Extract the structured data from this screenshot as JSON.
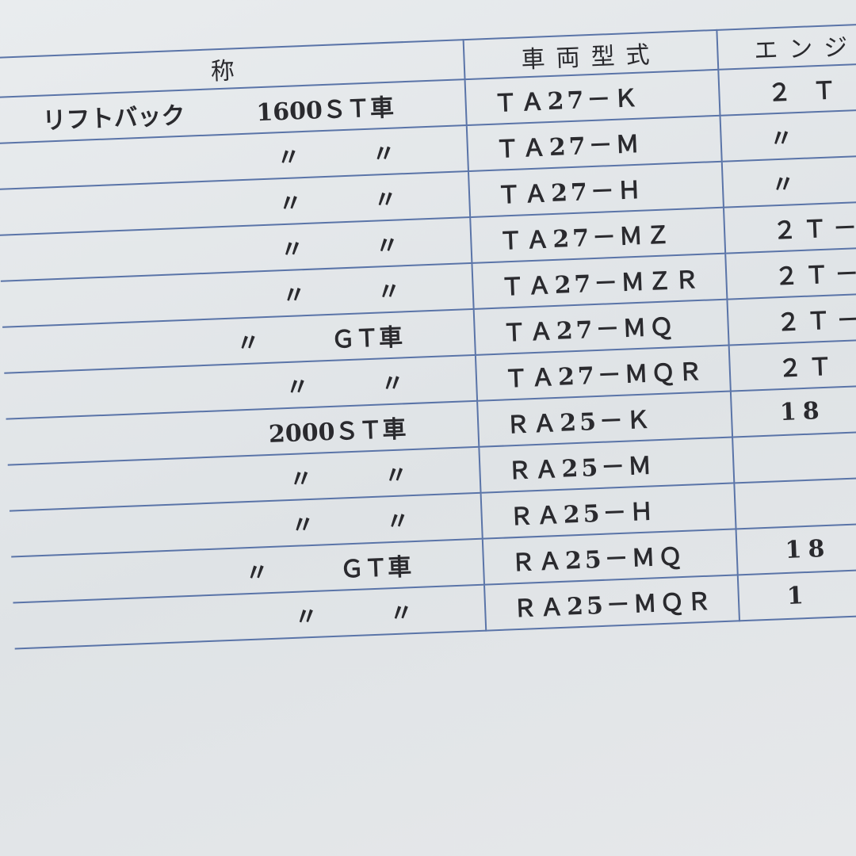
{
  "table": {
    "header": [
      "称",
      "車両型式",
      "エンジ"
    ],
    "rows": [
      {
        "name": [
          "リフトバック",
          "1600ＳＴ車"
        ],
        "model": "ＴＡ27－Ｋ",
        "engine": "２ Ｔ"
      },
      {
        "name": [
          "〃",
          "〃"
        ],
        "model": "ＴＡ27－Ｍ",
        "engine": "〃"
      },
      {
        "name": [
          "〃",
          "〃"
        ],
        "model": "ＴＡ27－Ｈ",
        "engine": "〃"
      },
      {
        "name": [
          "〃",
          "〃"
        ],
        "model": "ＴＡ27－ＭＺ",
        "engine": "２Ｔ－"
      },
      {
        "name": [
          "〃",
          "〃"
        ],
        "model": "ＴＡ27－ＭＺＲ",
        "engine": "２Ｔ－"
      },
      {
        "name": [
          "〃",
          "ＧＴ車"
        ],
        "model": "ＴＡ27－ＭＱ",
        "engine": "２Ｔ－"
      },
      {
        "name": [
          "〃",
          "〃"
        ],
        "model": "ＴＡ27－ＭＱＲ",
        "engine": "２Ｔ"
      },
      {
        "name": [
          "2000ＳＴ車"
        ],
        "model": "ＲＡ25－Ｋ",
        "engine": "18"
      },
      {
        "name": [
          "〃",
          "〃"
        ],
        "model": "ＲＡ25－Ｍ"
      },
      {
        "name": [
          "〃",
          "〃"
        ],
        "model": "ＲＡ25－Ｈ"
      },
      {
        "name": [
          "〃",
          "ＧＴ車"
        ],
        "model": "ＲＡ25－ＭＱ",
        "engine": "18"
      },
      {
        "name": [
          "〃",
          "〃"
        ],
        "model": "ＲＡ25－ＭＱＲ",
        "engine": "1"
      }
    ]
  }
}
